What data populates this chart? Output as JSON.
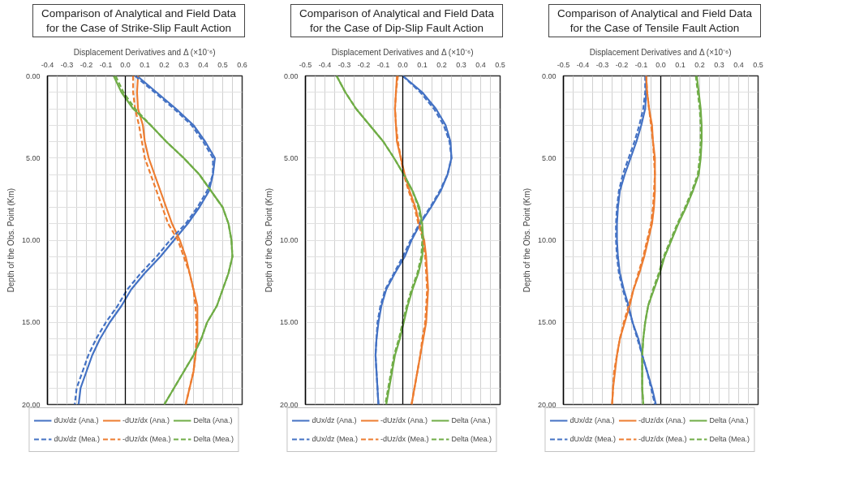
{
  "chart_data": [
    {
      "type": "line",
      "title": "Comparison of Analytical and Field Data for the Case of Strike-Slip Fault Action",
      "xlabel": "Displacement Derivatives and Δ (×10⁻⁶)",
      "ylabel": "Depth of the Obs. Point (Km)",
      "legend": "bottom",
      "grid": true,
      "xlim": [
        -0.4,
        0.6
      ],
      "ylim": [
        20,
        0
      ],
      "xticks": [
        {
          "value": -0.4,
          "label": "-0.4"
        },
        {
          "value": -0.35,
          "label": null
        },
        {
          "value": -0.3,
          "label": "-0.3"
        },
        {
          "value": -0.25,
          "label": null
        },
        {
          "value": -0.2,
          "label": "-0.2"
        },
        {
          "value": -0.15,
          "label": null
        },
        {
          "value": -0.1,
          "label": "-0.1"
        },
        {
          "value": -0.05,
          "label": null
        },
        {
          "value": 0,
          "label": "0.0"
        },
        {
          "value": 0.05,
          "label": null
        },
        {
          "value": 0.1,
          "label": "0.1"
        },
        {
          "value": 0.15,
          "label": null
        },
        {
          "value": 0.2,
          "label": "0.2"
        },
        {
          "value": 0.25,
          "label": null
        },
        {
          "value": 0.3,
          "label": "0.3"
        },
        {
          "value": 0.35,
          "label": null
        },
        {
          "value": 0.4,
          "label": "0.4"
        },
        {
          "value": 0.45,
          "label": null
        },
        {
          "value": 0.5,
          "label": "0.5"
        },
        {
          "value": 0.55,
          "label": null
        },
        {
          "value": 0.6,
          "label": "0.6"
        }
      ],
      "yticks": [
        {
          "value": 0,
          "label": "0.00"
        },
        {
          "value": 1,
          "label": null
        },
        {
          "value": 2,
          "label": null
        },
        {
          "value": 3,
          "label": null
        },
        {
          "value": 4,
          "label": null
        },
        {
          "value": 5,
          "label": "5.00"
        },
        {
          "value": 6,
          "label": null
        },
        {
          "value": 7,
          "label": null
        },
        {
          "value": 8,
          "label": null
        },
        {
          "value": 9,
          "label": null
        },
        {
          "value": 10,
          "label": "10.00"
        },
        {
          "value": 11,
          "label": null
        },
        {
          "value": 12,
          "label": null
        },
        {
          "value": 13,
          "label": null
        },
        {
          "value": 14,
          "label": null
        },
        {
          "value": 15,
          "label": "15.00"
        },
        {
          "value": 16,
          "label": null
        },
        {
          "value": 17,
          "label": null
        },
        {
          "value": 18,
          "label": null
        },
        {
          "value": 19,
          "label": null
        },
        {
          "value": 20,
          "label": "20.00"
        }
      ],
      "series": [
        {
          "name": "dUx/dz (Ana.)",
          "color": "#4472c4",
          "line_style": "solid",
          "x": [
            0.06,
            0.16,
            0.26,
            0.35,
            0.41,
            0.46,
            0.45,
            0.43,
            0.38,
            0.32,
            0.25,
            0.18,
            0.1,
            0.03,
            -0.02,
            -0.08,
            -0.13,
            -0.17,
            -0.2,
            -0.23,
            -0.24
          ],
          "values": [
            0,
            1,
            2,
            3,
            4,
            5,
            6,
            7,
            8,
            9,
            10,
            11,
            12,
            13,
            14,
            15,
            16,
            17,
            18,
            19,
            20
          ]
        },
        {
          "name": "-dUz/dx (Ana.)",
          "color": "#ed7d31",
          "line_style": "solid",
          "x": [
            0.065,
            0.06,
            0.065,
            0.09,
            0.1,
            0.12,
            0.15,
            0.18,
            0.21,
            0.24,
            0.28,
            0.31,
            0.33,
            0.35,
            0.37,
            0.37,
            0.37,
            0.36,
            0.35,
            0.33,
            0.31
          ],
          "values": [
            0,
            1,
            2,
            3,
            4,
            5,
            6,
            7,
            8,
            9,
            10,
            11,
            12,
            13,
            14,
            15,
            16,
            17,
            18,
            19,
            20
          ]
        },
        {
          "name": "Delta (Ana.)",
          "color": "#70ad47",
          "line_style": "solid",
          "x": [
            -0.06,
            -0.02,
            0.04,
            0.13,
            0.21,
            0.3,
            0.38,
            0.44,
            0.5,
            0.53,
            0.545,
            0.55,
            0.53,
            0.5,
            0.47,
            0.42,
            0.39,
            0.35,
            0.3,
            0.25,
            0.2
          ],
          "values": [
            0,
            1,
            2,
            3,
            4,
            5,
            6,
            7,
            8,
            9,
            10,
            11,
            12,
            13,
            14,
            15,
            16,
            17,
            18,
            19,
            20
          ]
        },
        {
          "name": "dUx/dz (Mea.)",
          "color": "#4472c4",
          "line_style": "dashed",
          "x": [
            0.05,
            0.15,
            0.25,
            0.34,
            0.4,
            0.45,
            0.45,
            0.42,
            0.37,
            0.31,
            0.23,
            0.16,
            0.08,
            0.01,
            -0.04,
            -0.1,
            -0.15,
            -0.19,
            -0.22,
            -0.25,
            -0.26
          ],
          "values": [
            0,
            1,
            2,
            3,
            4,
            5,
            6,
            7,
            8,
            9,
            10,
            11,
            12,
            13,
            14,
            15,
            16,
            17,
            18,
            19,
            20
          ]
        },
        {
          "name": "-dUz/dx (Mea.)",
          "color": "#ed7d31",
          "line_style": "dashed",
          "x": [
            0.04,
            0.04,
            0.05,
            0.07,
            0.085,
            0.1,
            0.13,
            0.16,
            0.19,
            0.22,
            0.27,
            0.3,
            0.33,
            0.35,
            0.36,
            0.365,
            0.365,
            0.36,
            0.35,
            0.33,
            0.31
          ],
          "values": [
            0,
            1,
            2,
            3,
            4,
            5,
            6,
            7,
            8,
            9,
            10,
            11,
            12,
            13,
            14,
            15,
            16,
            17,
            18,
            19,
            20
          ]
        },
        {
          "name": "Delta (Mea.)",
          "color": "#70ad47",
          "line_style": "dashed",
          "x": [
            -0.05,
            -0.01,
            0.05,
            0.13,
            0.21,
            0.3,
            0.38,
            0.44,
            0.5,
            0.53,
            0.545,
            0.55,
            0.53,
            0.5,
            0.47,
            0.42,
            0.39,
            0.35,
            0.3,
            0.25,
            0.2
          ],
          "values": [
            0,
            1,
            2,
            3,
            4,
            5,
            6,
            7,
            8,
            9,
            10,
            11,
            12,
            13,
            14,
            15,
            16,
            17,
            18,
            19,
            20
          ]
        }
      ]
    },
    {
      "type": "line",
      "title": "Comparison of Analytical and Field Data for the Case of Dip-Slip Fault Action",
      "xlabel": "Displacement Derivatives and Δ (×10⁻⁶)",
      "ylabel": "Depth of the Obs. Point (Km)",
      "legend": "bottom",
      "grid": true,
      "xlim": [
        -0.5,
        0.5
      ],
      "ylim": [
        20,
        0
      ],
      "xticks": [
        {
          "value": -0.5,
          "label": "-0.5"
        },
        {
          "value": -0.45,
          "label": null
        },
        {
          "value": -0.4,
          "label": "-0.4"
        },
        {
          "value": -0.35,
          "label": null
        },
        {
          "value": -0.3,
          "label": "-0.3"
        },
        {
          "value": -0.25,
          "label": null
        },
        {
          "value": -0.2,
          "label": "-0.2"
        },
        {
          "value": -0.15,
          "label": null
        },
        {
          "value": -0.1,
          "label": "-0.1"
        },
        {
          "value": -0.05,
          "label": null
        },
        {
          "value": 0,
          "label": "0.0"
        },
        {
          "value": 0.05,
          "label": null
        },
        {
          "value": 0.1,
          "label": "0.1"
        },
        {
          "value": 0.15,
          "label": null
        },
        {
          "value": 0.2,
          "label": "0.2"
        },
        {
          "value": 0.25,
          "label": null
        },
        {
          "value": 0.3,
          "label": "0.3"
        },
        {
          "value": 0.35,
          "label": null
        },
        {
          "value": 0.4,
          "label": "0.4"
        },
        {
          "value": 0.45,
          "label": null
        },
        {
          "value": 0.5,
          "label": "0.5"
        }
      ],
      "yticks": [
        {
          "value": 0,
          "label": "0.00"
        },
        {
          "value": 1,
          "label": null
        },
        {
          "value": 2,
          "label": null
        },
        {
          "value": 3,
          "label": null
        },
        {
          "value": 4,
          "label": null
        },
        {
          "value": 5,
          "label": "5.00"
        },
        {
          "value": 6,
          "label": null
        },
        {
          "value": 7,
          "label": null
        },
        {
          "value": 8,
          "label": null
        },
        {
          "value": 9,
          "label": null
        },
        {
          "value": 10,
          "label": "10.00"
        },
        {
          "value": 11,
          "label": null
        },
        {
          "value": 12,
          "label": null
        },
        {
          "value": 13,
          "label": null
        },
        {
          "value": 14,
          "label": null
        },
        {
          "value": 15,
          "label": "15.00"
        },
        {
          "value": 16,
          "label": null
        },
        {
          "value": 17,
          "label": null
        },
        {
          "value": 18,
          "label": null
        },
        {
          "value": 19,
          "label": null
        },
        {
          "value": 20,
          "label": "20.00"
        }
      ],
      "series": [
        {
          "name": "dUx/dz (Ana.)",
          "color": "#4472c4",
          "line_style": "solid",
          "x": [
            0.0,
            0.1,
            0.17,
            0.22,
            0.245,
            0.25,
            0.23,
            0.195,
            0.145,
            0.09,
            0.045,
            0.01,
            -0.04,
            -0.085,
            -0.11,
            -0.125,
            -0.135,
            -0.14,
            -0.135,
            -0.13,
            -0.125
          ],
          "values": [
            0,
            1,
            2,
            3,
            4,
            5,
            6,
            7,
            8,
            9,
            10,
            11,
            12,
            13,
            14,
            15,
            16,
            17,
            18,
            19,
            20
          ]
        },
        {
          "name": "-dUz/dx (Ana.)",
          "color": "#ed7d31",
          "line_style": "solid",
          "x": [
            -0.03,
            -0.035,
            -0.04,
            -0.035,
            -0.03,
            -0.01,
            0.01,
            0.035,
            0.065,
            0.085,
            0.11,
            0.12,
            0.125,
            0.13,
            0.125,
            0.12,
            0.105,
            0.09,
            0.075,
            0.06,
            0.045
          ],
          "values": [
            0,
            1,
            2,
            3,
            4,
            5,
            6,
            7,
            8,
            9,
            10,
            11,
            12,
            13,
            14,
            15,
            16,
            17,
            18,
            19,
            20
          ]
        },
        {
          "name": "Delta (Ana.)",
          "color": "#70ad47",
          "line_style": "solid",
          "x": [
            -0.34,
            -0.295,
            -0.24,
            -0.17,
            -0.1,
            -0.045,
            0.005,
            0.05,
            0.085,
            0.1,
            0.105,
            0.1,
            0.08,
            0.05,
            0.025,
            0.005,
            -0.015,
            -0.04,
            -0.055,
            -0.07,
            -0.085
          ],
          "values": [
            0,
            1,
            2,
            3,
            4,
            5,
            6,
            7,
            8,
            9,
            10,
            11,
            12,
            13,
            14,
            15,
            16,
            17,
            18,
            19,
            20
          ]
        },
        {
          "name": "dUx/dz (Mea.)",
          "color": "#4472c4",
          "line_style": "dashed",
          "x": [
            0.0,
            0.09,
            0.16,
            0.21,
            0.24,
            0.25,
            0.23,
            0.19,
            0.14,
            0.085,
            0.04,
            0.0,
            -0.045,
            -0.09,
            -0.115,
            -0.13,
            -0.135,
            -0.14,
            -0.135,
            -0.13,
            -0.125
          ],
          "values": [
            0,
            1,
            2,
            3,
            4,
            5,
            6,
            7,
            8,
            9,
            10,
            11,
            12,
            13,
            14,
            15,
            16,
            17,
            18,
            19,
            20
          ]
        },
        {
          "name": "-dUz/dx (Mea.)",
          "color": "#ed7d31",
          "line_style": "dashed",
          "x": [
            -0.025,
            -0.035,
            -0.04,
            -0.035,
            -0.025,
            -0.01,
            0.005,
            0.03,
            0.06,
            0.08,
            0.105,
            0.115,
            0.12,
            0.125,
            0.12,
            0.115,
            0.1,
            0.09,
            0.075,
            0.06,
            0.045
          ],
          "values": [
            0,
            1,
            2,
            3,
            4,
            5,
            6,
            7,
            8,
            9,
            10,
            11,
            12,
            13,
            14,
            15,
            16,
            17,
            18,
            19,
            20
          ]
        },
        {
          "name": "Delta (Mea.)",
          "color": "#70ad47",
          "line_style": "dashed",
          "x": [
            -0.34,
            -0.295,
            -0.24,
            -0.17,
            -0.1,
            -0.045,
            0.005,
            0.05,
            0.08,
            0.095,
            0.1,
            0.095,
            0.075,
            0.045,
            0.02,
            0.0,
            -0.02,
            -0.045,
            -0.06,
            -0.075,
            -0.09
          ],
          "values": [
            0,
            1,
            2,
            3,
            4,
            5,
            6,
            7,
            8,
            9,
            10,
            11,
            12,
            13,
            14,
            15,
            16,
            17,
            18,
            19,
            20
          ]
        }
      ]
    },
    {
      "type": "line",
      "title": "Comparison of Analytical and Field Data for the Case of Tensile Fault Action",
      "xlabel": "Displacement Derivatives and Δ (×10⁻⁶)",
      "ylabel": "Depth of the Obs. Point (Km)",
      "legend": "bottom",
      "grid": true,
      "xlim": [
        -0.5,
        0.5
      ],
      "ylim": [
        20,
        0
      ],
      "xticks": [
        {
          "value": -0.5,
          "label": "-0.5"
        },
        {
          "value": -0.45,
          "label": null
        },
        {
          "value": -0.4,
          "label": "-0.4"
        },
        {
          "value": -0.35,
          "label": null
        },
        {
          "value": -0.3,
          "label": "-0.3"
        },
        {
          "value": -0.25,
          "label": null
        },
        {
          "value": -0.2,
          "label": "-0.2"
        },
        {
          "value": -0.15,
          "label": null
        },
        {
          "value": -0.1,
          "label": "-0.1"
        },
        {
          "value": -0.05,
          "label": null
        },
        {
          "value": 0,
          "label": "0.0"
        },
        {
          "value": 0.05,
          "label": null
        },
        {
          "value": 0.1,
          "label": "0.1"
        },
        {
          "value": 0.15,
          "label": null
        },
        {
          "value": 0.2,
          "label": "0.2"
        },
        {
          "value": 0.25,
          "label": null
        },
        {
          "value": 0.3,
          "label": "0.3"
        },
        {
          "value": 0.35,
          "label": null
        },
        {
          "value": 0.4,
          "label": "0.4"
        },
        {
          "value": 0.45,
          "label": null
        },
        {
          "value": 0.5,
          "label": "0.5"
        }
      ],
      "yticks": [
        {
          "value": 0,
          "label": "0.00"
        },
        {
          "value": 1,
          "label": null
        },
        {
          "value": 2,
          "label": null
        },
        {
          "value": 3,
          "label": null
        },
        {
          "value": 4,
          "label": null
        },
        {
          "value": 5,
          "label": "5.00"
        },
        {
          "value": 6,
          "label": null
        },
        {
          "value": 7,
          "label": null
        },
        {
          "value": 8,
          "label": null
        },
        {
          "value": 9,
          "label": null
        },
        {
          "value": 10,
          "label": "10.00"
        },
        {
          "value": 11,
          "label": null
        },
        {
          "value": 12,
          "label": null
        },
        {
          "value": 13,
          "label": null
        },
        {
          "value": 14,
          "label": null
        },
        {
          "value": 15,
          "label": "15.00"
        },
        {
          "value": 16,
          "label": null
        },
        {
          "value": 17,
          "label": null
        },
        {
          "value": 18,
          "label": null
        },
        {
          "value": 19,
          "label": null
        },
        {
          "value": 20,
          "label": "20.00"
        }
      ],
      "series": [
        {
          "name": "dUx/dz (Ana.)",
          "color": "#4472c4",
          "line_style": "solid",
          "x": [
            -0.075,
            -0.075,
            -0.08,
            -0.1,
            -0.125,
            -0.155,
            -0.185,
            -0.21,
            -0.22,
            -0.225,
            -0.225,
            -0.22,
            -0.21,
            -0.19,
            -0.165,
            -0.145,
            -0.115,
            -0.095,
            -0.07,
            -0.045,
            -0.025
          ],
          "values": [
            0,
            1,
            2,
            3,
            4,
            5,
            6,
            7,
            8,
            9,
            10,
            11,
            12,
            13,
            14,
            15,
            16,
            17,
            18,
            19,
            20
          ]
        },
        {
          "name": "-dUz/dx (Ana.)",
          "color": "#ed7d31",
          "line_style": "solid",
          "x": [
            -0.075,
            -0.07,
            -0.06,
            -0.045,
            -0.04,
            -0.03,
            -0.03,
            -0.03,
            -0.035,
            -0.045,
            -0.065,
            -0.085,
            -0.11,
            -0.14,
            -0.16,
            -0.185,
            -0.21,
            -0.225,
            -0.235,
            -0.245,
            -0.25
          ],
          "values": [
            0,
            1,
            2,
            3,
            4,
            5,
            6,
            7,
            8,
            9,
            10,
            11,
            12,
            13,
            14,
            15,
            16,
            17,
            18,
            19,
            20
          ]
        },
        {
          "name": "Delta (Ana.)",
          "color": "#70ad47",
          "line_style": "solid",
          "x": [
            0.185,
            0.195,
            0.205,
            0.21,
            0.21,
            0.205,
            0.195,
            0.165,
            0.13,
            0.09,
            0.055,
            0.02,
            -0.005,
            -0.035,
            -0.065,
            -0.08,
            -0.09,
            -0.095,
            -0.095,
            -0.095,
            -0.09
          ],
          "values": [
            0,
            1,
            2,
            3,
            4,
            5,
            6,
            7,
            8,
            9,
            10,
            11,
            12,
            13,
            14,
            15,
            16,
            17,
            18,
            19,
            20
          ]
        },
        {
          "name": "dUx/dz (Mea.)",
          "color": "#4472c4",
          "line_style": "dashed",
          "x": [
            -0.08,
            -0.08,
            -0.09,
            -0.11,
            -0.135,
            -0.165,
            -0.195,
            -0.215,
            -0.225,
            -0.23,
            -0.23,
            -0.225,
            -0.215,
            -0.195,
            -0.17,
            -0.145,
            -0.12,
            -0.095,
            -0.07,
            -0.05,
            -0.03
          ],
          "values": [
            0,
            1,
            2,
            3,
            4,
            5,
            6,
            7,
            8,
            9,
            10,
            11,
            12,
            13,
            14,
            15,
            16,
            17,
            18,
            19,
            20
          ]
        },
        {
          "name": "-dUz/dx (Mea.)",
          "color": "#ed7d31",
          "line_style": "dashed",
          "x": [
            -0.075,
            -0.07,
            -0.06,
            -0.05,
            -0.04,
            -0.035,
            -0.03,
            -0.035,
            -0.04,
            -0.05,
            -0.07,
            -0.09,
            -0.115,
            -0.14,
            -0.165,
            -0.19,
            -0.21,
            -0.225,
            -0.24,
            -0.245,
            -0.25
          ],
          "values": [
            0,
            1,
            2,
            3,
            4,
            5,
            6,
            7,
            8,
            9,
            10,
            11,
            12,
            13,
            14,
            15,
            16,
            17,
            18,
            19,
            20
          ]
        },
        {
          "name": "Delta (Mea.)",
          "color": "#70ad47",
          "line_style": "dashed",
          "x": [
            0.18,
            0.19,
            0.2,
            0.205,
            0.205,
            0.2,
            0.19,
            0.16,
            0.125,
            0.085,
            0.05,
            0.015,
            -0.01,
            -0.04,
            -0.065,
            -0.08,
            -0.09,
            -0.095,
            -0.095,
            -0.095,
            -0.09
          ],
          "values": [
            0,
            1,
            2,
            3,
            4,
            5,
            6,
            7,
            8,
            9,
            10,
            11,
            12,
            13,
            14,
            15,
            16,
            17,
            18,
            19,
            20
          ]
        }
      ]
    }
  ]
}
